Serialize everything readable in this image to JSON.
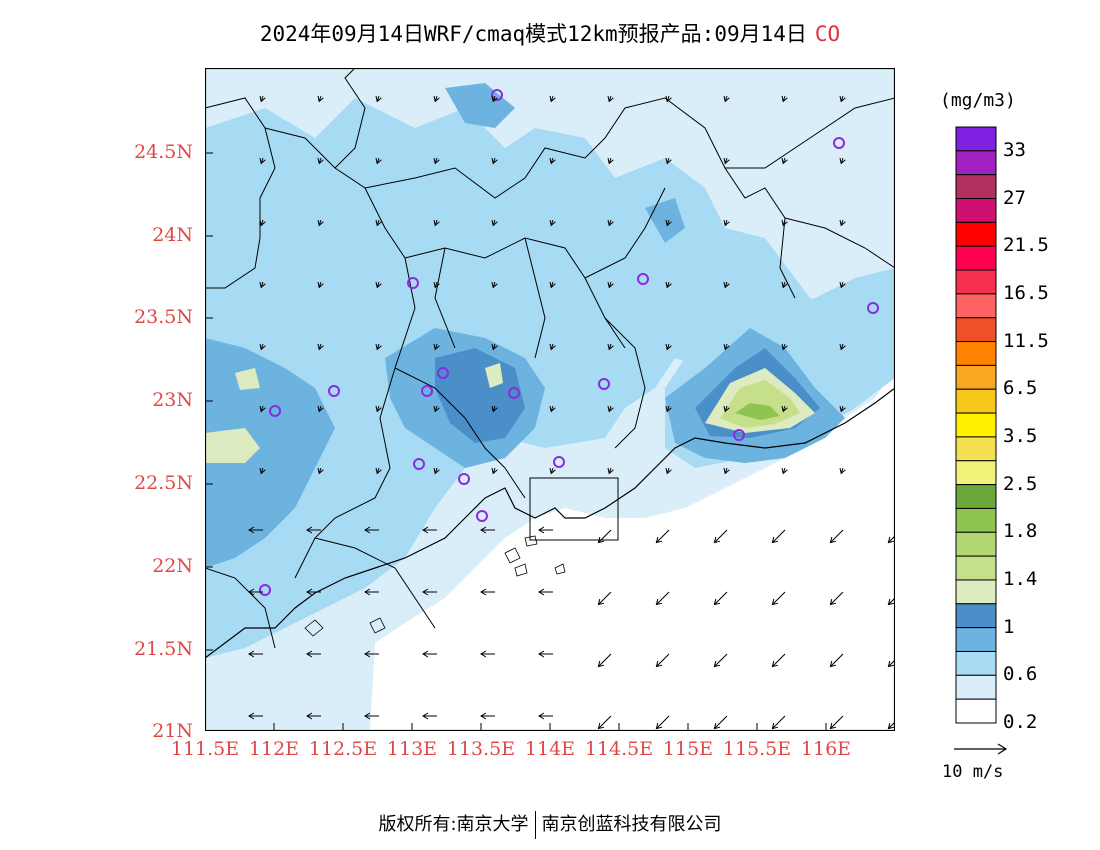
{
  "title": {
    "main": "2024年09月14日WRF/cmaq模式12km预报产品:09月14日",
    "species": "CO"
  },
  "colors": {
    "label_red": "#e04848",
    "sea": "#ffffff",
    "bins": [
      "#ffffff",
      "#daeef9",
      "#a7dbf3",
      "#6cb3e0",
      "#4a8fc8",
      "#dcebc0",
      "#c6e08a",
      "#b2d772",
      "#8fc450",
      "#6aa83a",
      "#f0f27a",
      "#f5e050",
      "#fff000",
      "#f6c81c",
      "#f8a820",
      "#ff8200",
      "#f05028",
      "#ff6464",
      "#f83050",
      "#ff0050",
      "#ff0000",
      "#d01070",
      "#b03060",
      "#a020c0",
      "#8020e0"
    ]
  },
  "map": {
    "lat_ticks": [
      "24.5N",
      "24N",
      "23.5N",
      "23N",
      "22.5N",
      "22N",
      "21.5N",
      "21N"
    ],
    "lon_ticks": [
      "111.5E",
      "112E",
      "112.5E",
      "113E",
      "113.5E",
      "114E",
      "114.5E",
      "115E",
      "115.5E",
      "116E"
    ]
  },
  "legend": {
    "unit": "(mg/m3)",
    "labels": [
      "33",
      "27",
      "21.5",
      "16.5",
      "11.5",
      "6.5",
      "3.5",
      "2.5",
      "1.8",
      "1.4",
      "1",
      "0.6",
      "0.2"
    ]
  },
  "wind_reference": "10 m/s",
  "footer": {
    "left": "版权所有:南京大学",
    "right": "南京创蓝科技有限公司"
  }
}
